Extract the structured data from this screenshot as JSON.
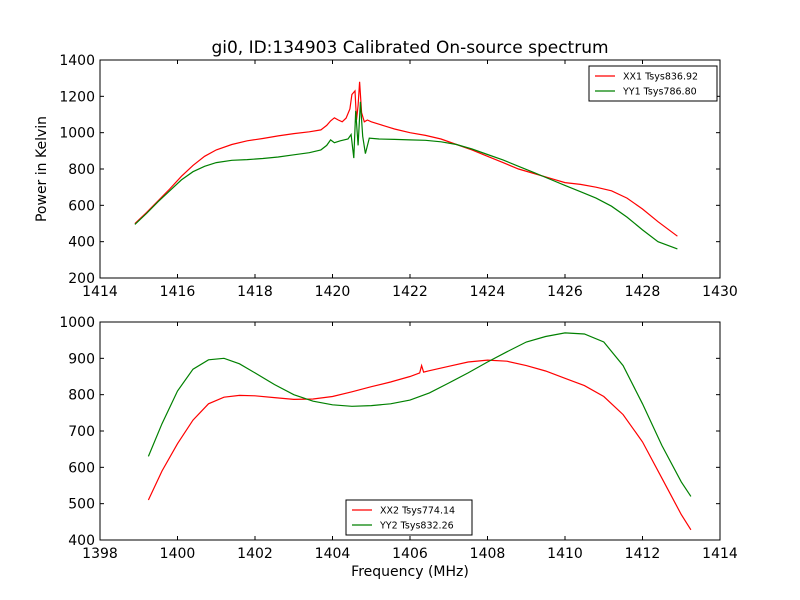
{
  "chart_data": [
    {
      "type": "line",
      "title": "gi0, ID:134903 Calibrated On-source spectrum",
      "xlabel": "",
      "ylabel": "Power in Kelvin",
      "xlim": [
        1414,
        1430
      ],
      "ylim": [
        200,
        1400
      ],
      "xticks": [
        "1414",
        "1416",
        "1418",
        "1420",
        "1422",
        "1424",
        "1426",
        "1428",
        "1430"
      ],
      "yticks": [
        "200",
        "400",
        "600",
        "800",
        "1000",
        "1200",
        "1400"
      ],
      "legend_position": "top-right",
      "grid": false,
      "series": [
        {
          "name": "XX1 Tsys836.92",
          "color": "#ff0000",
          "x": [
            1414.9,
            1415.2,
            1415.5,
            1415.8,
            1416.1,
            1416.4,
            1416.7,
            1417.0,
            1417.4,
            1417.8,
            1418.2,
            1418.6,
            1419.0,
            1419.4,
            1419.7,
            1419.85,
            1419.95,
            1420.05,
            1420.15,
            1420.25,
            1420.35,
            1420.45,
            1420.5,
            1420.58,
            1420.62,
            1420.66,
            1420.7,
            1420.75,
            1420.82,
            1420.9,
            1421.0,
            1421.3,
            1421.6,
            1422.0,
            1422.4,
            1422.8,
            1423.2,
            1423.6,
            1424.0,
            1424.4,
            1424.8,
            1425.2,
            1425.6,
            1426.0,
            1426.4,
            1426.8,
            1427.2,
            1427.6,
            1428.0,
            1428.4,
            1428.9
          ],
          "y": [
            500,
            560,
            625,
            690,
            760,
            820,
            870,
            905,
            935,
            955,
            968,
            982,
            995,
            1005,
            1015,
            1040,
            1065,
            1082,
            1070,
            1060,
            1080,
            1130,
            1210,
            1230,
            1070,
            1150,
            1280,
            1110,
            1060,
            1070,
            1060,
            1040,
            1020,
            1000,
            985,
            965,
            935,
            905,
            870,
            835,
            800,
            775,
            750,
            725,
            715,
            700,
            680,
            640,
            580,
            510,
            430
          ]
        },
        {
          "name": "YY1 Tsys786.80",
          "color": "#008000",
          "x": [
            1414.9,
            1415.2,
            1415.5,
            1415.8,
            1416.1,
            1416.4,
            1416.7,
            1417.0,
            1417.4,
            1417.8,
            1418.2,
            1418.6,
            1419.0,
            1419.4,
            1419.7,
            1419.85,
            1419.95,
            1420.05,
            1420.2,
            1420.4,
            1420.48,
            1420.55,
            1420.6,
            1420.66,
            1420.72,
            1420.78,
            1420.85,
            1420.95,
            1421.2,
            1421.6,
            1422.0,
            1422.4,
            1422.8,
            1423.2,
            1423.6,
            1424.0,
            1424.4,
            1424.8,
            1425.2,
            1425.6,
            1426.0,
            1426.4,
            1426.8,
            1427.2,
            1427.6,
            1428.0,
            1428.4,
            1428.9
          ],
          "y": [
            495,
            555,
            620,
            680,
            740,
            785,
            815,
            835,
            848,
            852,
            858,
            866,
            878,
            890,
            905,
            930,
            960,
            945,
            955,
            965,
            990,
            860,
            1120,
            930,
            1170,
            980,
            885,
            970,
            965,
            963,
            960,
            958,
            950,
            935,
            910,
            880,
            850,
            815,
            780,
            745,
            710,
            675,
            640,
            595,
            535,
            465,
            400,
            360
          ]
        }
      ]
    },
    {
      "type": "line",
      "title": "",
      "xlabel": "Frequency (MHz)",
      "ylabel": "",
      "xlim": [
        1398,
        1414
      ],
      "ylim": [
        400,
        1000
      ],
      "xticks": [
        "1398",
        "1400",
        "1402",
        "1404",
        "1406",
        "1408",
        "1410",
        "1412",
        "1414"
      ],
      "yticks": [
        "400",
        "500",
        "600",
        "700",
        "800",
        "900",
        "1000"
      ],
      "legend_position": "bottom-center",
      "grid": false,
      "series": [
        {
          "name": "XX2 Tsys774.14",
          "color": "#ff0000",
          "x": [
            1399.25,
            1399.6,
            1400.0,
            1400.4,
            1400.8,
            1401.2,
            1401.6,
            1402.0,
            1402.5,
            1403.0,
            1403.5,
            1404.0,
            1404.5,
            1405.0,
            1405.5,
            1406.0,
            1406.25,
            1406.3,
            1406.35,
            1406.5,
            1407.0,
            1407.5,
            1408.0,
            1408.5,
            1409.0,
            1409.5,
            1410.0,
            1410.5,
            1411.0,
            1411.5,
            1412.0,
            1412.5,
            1413.0,
            1413.25
          ],
          "y": [
            510,
            590,
            665,
            730,
            775,
            793,
            798,
            797,
            792,
            787,
            788,
            795,
            808,
            822,
            835,
            850,
            860,
            880,
            862,
            866,
            878,
            890,
            895,
            892,
            880,
            865,
            845,
            825,
            795,
            745,
            670,
            570,
            470,
            428
          ]
        },
        {
          "name": "YY2 Tsys832.26",
          "color": "#008000",
          "x": [
            1399.25,
            1399.6,
            1400.0,
            1400.4,
            1400.8,
            1401.2,
            1401.6,
            1402.0,
            1402.5,
            1403.0,
            1403.5,
            1404.0,
            1404.5,
            1405.0,
            1405.5,
            1406.0,
            1406.5,
            1407.0,
            1407.5,
            1408.0,
            1408.5,
            1409.0,
            1409.5,
            1410.0,
            1410.5,
            1411.0,
            1411.5,
            1412.0,
            1412.5,
            1413.0,
            1413.25
          ],
          "y": [
            630,
            720,
            810,
            870,
            896,
            900,
            885,
            860,
            828,
            800,
            782,
            772,
            768,
            770,
            775,
            785,
            805,
            832,
            860,
            890,
            918,
            945,
            960,
            970,
            967,
            945,
            880,
            775,
            660,
            560,
            520
          ]
        }
      ]
    }
  ]
}
